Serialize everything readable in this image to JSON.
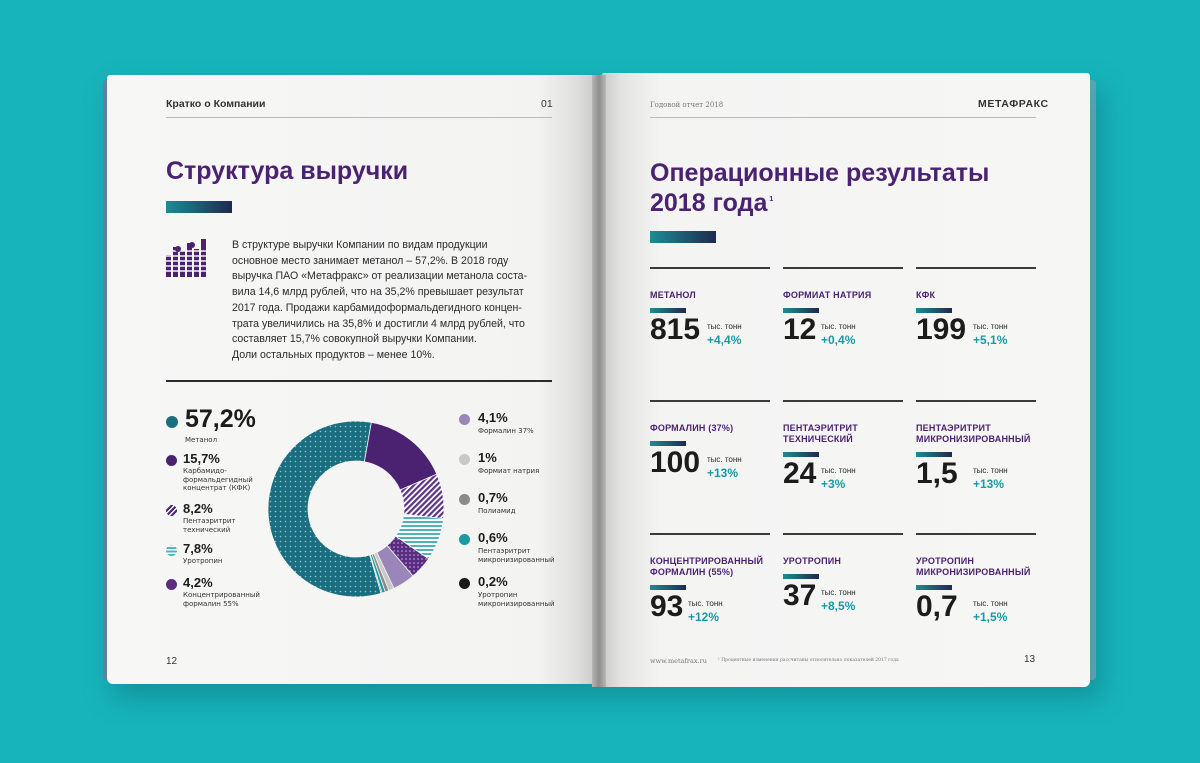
{
  "left_page": {
    "header": "Кратко о Компании",
    "header_num": "01",
    "title": "Структура выручки",
    "paragraph": [
      "В структуре выручки Компании по видам продукции",
      "основное место занимает метанол – 57,2%. В 2018 году",
      "выручка ПАО «Метафракс» от реализации метанола соста-",
      "вила 14,6 млрд рублей, что на 35,2% превышает результат",
      "2017 года. Продажи карбамидоформальдегидного концен-",
      "трата увеличились на 35,8% и достигли 4 млрд рублей, что",
      "составляет 15,7% совокупной выручки Компании.",
      "Доли остальных продуктов – менее 10%."
    ],
    "page_number": "12"
  },
  "right_page": {
    "header_left": "Годовой отчет 2018",
    "header_right": "МЕТАФРАКС",
    "title_line1": "Операционные результаты",
    "title_line2": "2018 года",
    "title_sup": "1",
    "stats": [
      {
        "name": "МЕТАНОЛ",
        "value": "815",
        "unit": "тыс. тонн",
        "change": "+4,4%"
      },
      {
        "name": "ФОРМИАТ НАТРИЯ",
        "value": "12",
        "unit": "тыс. тонн",
        "change": "+0,4%"
      },
      {
        "name": "КФК",
        "value": "199",
        "unit": "тыс. тонн",
        "change": "+5,1%"
      },
      {
        "name": "ФОРМАЛИН (37%)",
        "value": "100",
        "unit": "тыс. тонн",
        "change": "+13%"
      },
      {
        "name": "ПЕНТАЭРИТРИТ ТЕХНИЧЕСКИЙ",
        "value": "24",
        "unit": "тыс. тонн",
        "change": "+3%"
      },
      {
        "name": "ПЕНТАЭРИТРИТ МИКРОНИЗИРОВАННЫЙ",
        "value": "1,5",
        "unit": "тыс. тонн",
        "change": "+13%"
      },
      {
        "name": "КОНЦЕНТРИРОВАННЫЙ ФОРМАЛИН (55%)",
        "value": "93",
        "unit": "тыс. тонн",
        "change": "+12%"
      },
      {
        "name": "УРОТРОПИН",
        "value": "37",
        "unit": "тыс. тонн",
        "change": "+8,5%"
      },
      {
        "name": "УРОТРОПИН МИКРОНИЗИРОВАННЫЙ",
        "value": "0,7",
        "unit": "тыс. тонн",
        "change": "+1,5%"
      }
    ],
    "website": "www.metafrax.ru",
    "footnote": "¹ Процентные изменения рассчитаны относительно показателей 2017 года",
    "page_number": "13"
  },
  "chart_data": {
    "type": "pie",
    "labels": [
      "Метанол",
      "Карбамидо-формальдегидный концентрат (КФК)",
      "Пентаэритрит технический",
      "Уротропин",
      "Концентрированный формалин 55%",
      "Формалин 37%",
      "Формиат натрия",
      "Полиамид",
      "Пентаэритрит микронизированный",
      "Уротропин микронизированный"
    ],
    "values": [
      57.2,
      15.7,
      8.2,
      7.8,
      4.2,
      4.1,
      1.0,
      0.7,
      0.6,
      0.2
    ],
    "value_labels": [
      "57,2%",
      "15,7%",
      "8,2%",
      "7,8%",
      "4,2%",
      "4,1%",
      "1%",
      "0,7%",
      "0,6%",
      "0,2%"
    ],
    "colors": [
      "#1a6e80",
      "#4b2272",
      "#6a4a8a",
      "#4fb3bb",
      "#5b2d82",
      "#9a86b8",
      "#c9c9c9",
      "#8a8a8a",
      "#1a9aa3",
      "#1b1b1b"
    ],
    "hole": 0.55
  }
}
